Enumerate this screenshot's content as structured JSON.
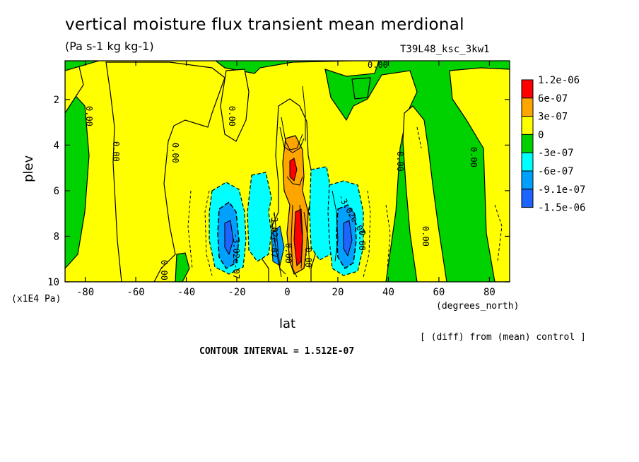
{
  "chart_data": {
    "type": "heatmap",
    "title": "vertical moisture flux transient mean merdional",
    "subtitle": "(Pa s-1 kg kg-1)",
    "run_label": "T39L48_ksc_3kw1",
    "xlabel": "lat",
    "xunits": "(degrees_north)",
    "ylabel": "plev",
    "yunits": "(x1E4 Pa)",
    "xlim": [
      -88,
      88
    ],
    "ylim": [
      10,
      0.3
    ],
    "x_ticks": [
      -80,
      -60,
      -40,
      -20,
      0,
      20,
      40,
      60,
      80
    ],
    "x_tick_labels": [
      "-80",
      "-60",
      "-40",
      "-20",
      "0",
      "20",
      "40",
      "60",
      "80"
    ],
    "y_ticks": [
      2,
      4,
      6,
      8,
      10
    ],
    "y_tick_labels": [
      "2",
      "4",
      "6",
      "8",
      "10"
    ],
    "legend_levels": [
      "1.2e-06",
      "6e-07",
      "3e-07",
      "0",
      "-3e-07",
      "-6e-07",
      "-9.1e-07",
      "-1.5e-06"
    ],
    "legend_colors": [
      "#ff0000",
      "#ffa500",
      "#ffff00",
      "#00d200",
      "#00ffff",
      "#00a0ff",
      "#1e64ff"
    ],
    "legend_placement": "right",
    "contour_labels": [
      "0.00",
      "0.00",
      "0.00",
      "0.00",
      "0.00",
      "0.00",
      "0.00",
      "0.00",
      "0.00",
      "0.00",
      "-3.02e-07",
      "-3.02e-07",
      "-3.02e-07",
      "0.00",
      "0.00"
    ],
    "contour_interval_text": "CONTOUR INTERVAL = 1.512E-07",
    "note": "[ (diff) from (mean) control ]",
    "grid": false
  }
}
